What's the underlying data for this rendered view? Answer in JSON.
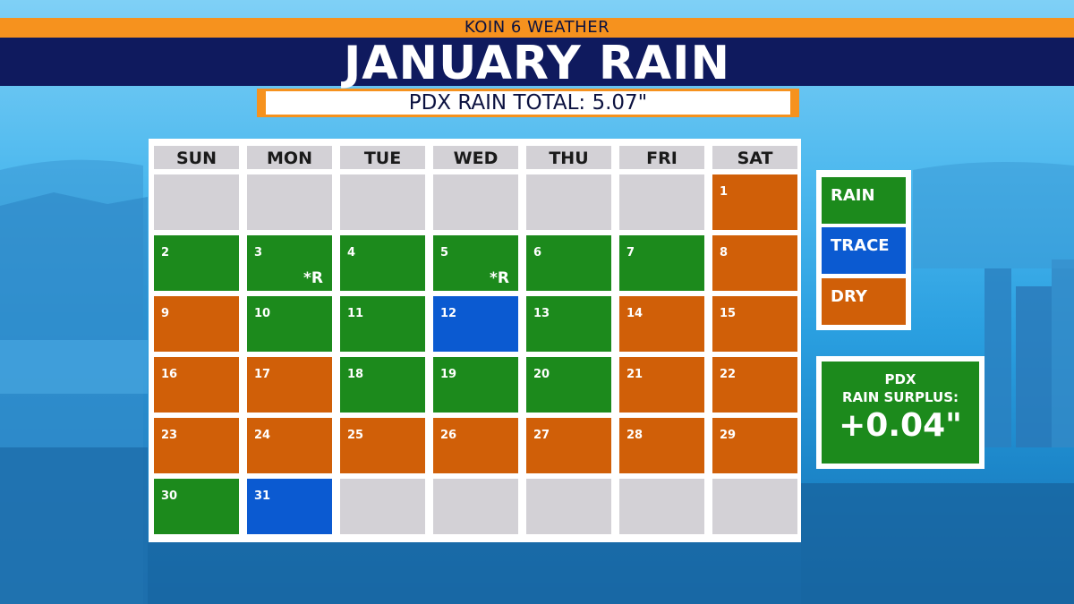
{
  "header": {
    "station": "KOIN 6 WEATHER",
    "title": "JANUARY RAIN",
    "total": "PDX RAIN TOTAL: 5.07\""
  },
  "colors": {
    "rain": "#1c8a1c",
    "trace": "#0b5ad1",
    "dry": "#d05f08",
    "empty": "#d3d1d6"
  },
  "calendar": {
    "weekdays": [
      "SUN",
      "MON",
      "TUE",
      "WED",
      "THU",
      "FRI",
      "SAT"
    ],
    "weeks": [
      [
        {
          "day": "",
          "status": "empty"
        },
        {
          "day": "",
          "status": "empty"
        },
        {
          "day": "",
          "status": "empty"
        },
        {
          "day": "",
          "status": "empty"
        },
        {
          "day": "",
          "status": "empty"
        },
        {
          "day": "",
          "status": "empty"
        },
        {
          "day": "1",
          "status": "dry"
        }
      ],
      [
        {
          "day": "2",
          "status": "rain"
        },
        {
          "day": "3",
          "status": "rain",
          "note": "*R"
        },
        {
          "day": "4",
          "status": "rain"
        },
        {
          "day": "5",
          "status": "rain",
          "note": "*R"
        },
        {
          "day": "6",
          "status": "rain"
        },
        {
          "day": "7",
          "status": "rain"
        },
        {
          "day": "8",
          "status": "dry"
        }
      ],
      [
        {
          "day": "9",
          "status": "dry"
        },
        {
          "day": "10",
          "status": "rain"
        },
        {
          "day": "11",
          "status": "rain"
        },
        {
          "day": "12",
          "status": "trace"
        },
        {
          "day": "13",
          "status": "rain"
        },
        {
          "day": "14",
          "status": "dry"
        },
        {
          "day": "15",
          "status": "dry"
        }
      ],
      [
        {
          "day": "16",
          "status": "dry"
        },
        {
          "day": "17",
          "status": "dry"
        },
        {
          "day": "18",
          "status": "rain"
        },
        {
          "day": "19",
          "status": "rain"
        },
        {
          "day": "20",
          "status": "rain"
        },
        {
          "day": "21",
          "status": "dry"
        },
        {
          "day": "22",
          "status": "dry"
        }
      ],
      [
        {
          "day": "23",
          "status": "dry"
        },
        {
          "day": "24",
          "status": "dry"
        },
        {
          "day": "25",
          "status": "dry"
        },
        {
          "day": "26",
          "status": "dry"
        },
        {
          "day": "27",
          "status": "dry"
        },
        {
          "day": "28",
          "status": "dry"
        },
        {
          "day": "29",
          "status": "dry"
        }
      ],
      [
        {
          "day": "30",
          "status": "rain"
        },
        {
          "day": "31",
          "status": "trace"
        },
        {
          "day": "",
          "status": "empty"
        },
        {
          "day": "",
          "status": "empty"
        },
        {
          "day": "",
          "status": "empty"
        },
        {
          "day": "",
          "status": "empty"
        },
        {
          "day": "",
          "status": "empty"
        }
      ]
    ]
  },
  "legend": [
    {
      "label": "RAIN",
      "status": "rain"
    },
    {
      "label": "TRACE",
      "status": "trace"
    },
    {
      "label": "DRY",
      "status": "dry"
    }
  ],
  "surplus": {
    "label_line1": "PDX",
    "label_line2": "RAIN SURPLUS:",
    "value": "+0.04\""
  }
}
